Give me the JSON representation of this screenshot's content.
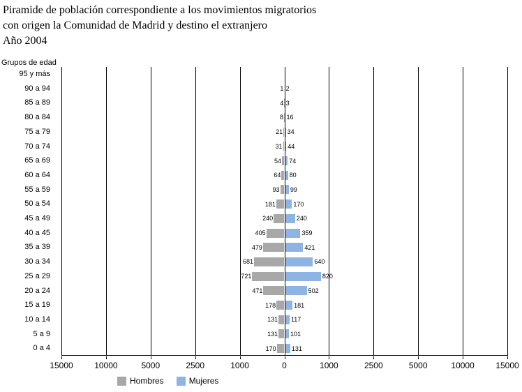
{
  "title": {
    "line1": "Piramide de población correspondiente a los movimientos migratorios",
    "line2": "con origen la Comunidad de Madrid y destino el extranjero",
    "line3": "Año 2004"
  },
  "y_axis_title": "Grupos de edad",
  "legend": {
    "hombres": "Hombres",
    "mujeres": "Mujeres"
  },
  "colors": {
    "hombres": "#A8A8A8",
    "mujeres": "#8DB4E2",
    "grid": "#000000"
  },
  "chart_data": {
    "type": "bar",
    "subtype": "population-pyramid",
    "title": "Piramide de población correspondiente a los movimientos migratorios con origen la Comunidad de Madrid y destino el extranjero. Año 2004",
    "ylabel": "Grupos de edad",
    "xlabel": "",
    "grid": true,
    "legend_position": "bottom",
    "x_scale_note": "symmetric axis, equal pixel spacing between tick values (non-linear): 0, 1000, 2500, 5000, 10000, 15000 on each side",
    "x_ticks": [
      "15000",
      "10000",
      "5000",
      "2500",
      "1000",
      "0",
      "1000",
      "2500",
      "5000",
      "10000",
      "15000"
    ],
    "categories": [
      "95 y más",
      "90 a 94",
      "85 a 89",
      "80 a 84",
      "75 a 79",
      "70 a 74",
      "65 a 69",
      "60 a 64",
      "55 a 59",
      "50 a 54",
      "45 a 49",
      "40 a 45",
      "35 a 39",
      "30 a 34",
      "25 a 29",
      "20 a 24",
      "15 a 19",
      "10 a 14",
      "5 a 9",
      "0 a 4"
    ],
    "series": [
      {
        "name": "Hombres",
        "side": "left",
        "color": "#A8A8A8",
        "values": [
          null,
          1,
          4,
          8,
          21,
          31,
          54,
          64,
          93,
          181,
          240,
          405,
          479,
          681,
          721,
          471,
          178,
          131,
          131,
          170
        ]
      },
      {
        "name": "Mujeres",
        "side": "right",
        "color": "#8DB4E2",
        "values": [
          null,
          2,
          3,
          16,
          34,
          44,
          74,
          80,
          99,
          170,
          240,
          359,
          421,
          640,
          820,
          502,
          181,
          117,
          101,
          131
        ]
      }
    ]
  }
}
